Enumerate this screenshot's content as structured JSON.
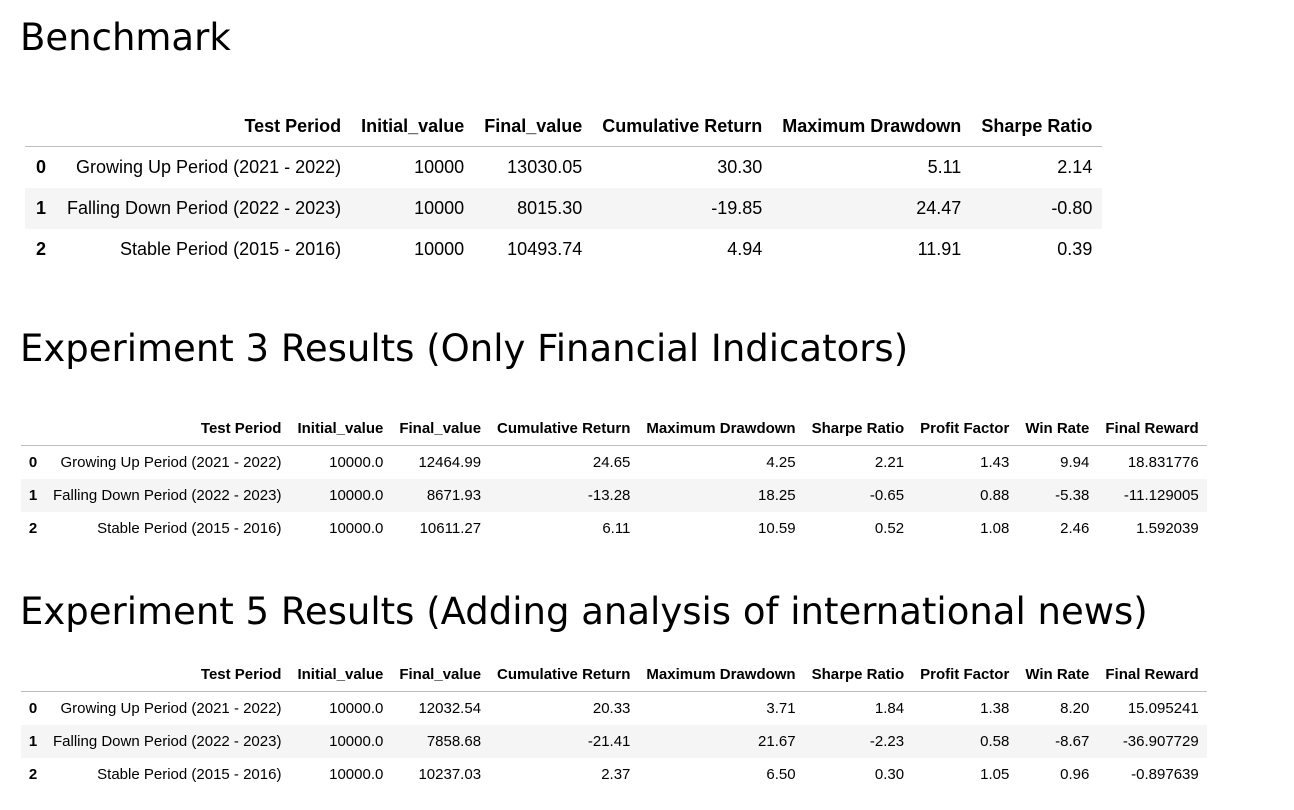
{
  "sections": {
    "benchmark": {
      "title": "Benchmark",
      "columns": [
        "",
        "Test Period",
        "Initial_value",
        "Final_value",
        "Cumulative Return",
        "Maximum Drawdown",
        "Sharpe Ratio"
      ],
      "rows": [
        [
          "0",
          "Growing Up Period (2021 - 2022)",
          "10000",
          "13030.05",
          "30.30",
          "5.11",
          "2.14"
        ],
        [
          "1",
          "Falling Down Period (2022 - 2023)",
          "10000",
          "8015.30",
          "-19.85",
          "24.47",
          "-0.80"
        ],
        [
          "2",
          "Stable Period (2015 - 2016)",
          "10000",
          "10493.74",
          "4.94",
          "11.91",
          "0.39"
        ]
      ]
    },
    "experiment3": {
      "title": "Experiment 3 Results (Only Financial Indicators)",
      "columns": [
        "",
        "Test Period",
        "Initial_value",
        "Final_value",
        "Cumulative Return",
        "Maximum Drawdown",
        "Sharpe Ratio",
        "Profit Factor",
        "Win Rate",
        "Final Reward"
      ],
      "rows": [
        [
          "0",
          "Growing Up Period (2021 - 2022)",
          "10000.0",
          "12464.99",
          "24.65",
          "4.25",
          "2.21",
          "1.43",
          "9.94",
          "18.831776"
        ],
        [
          "1",
          "Falling Down Period (2022 - 2023)",
          "10000.0",
          "8671.93",
          "-13.28",
          "18.25",
          "-0.65",
          "0.88",
          "-5.38",
          "-11.129005"
        ],
        [
          "2",
          "Stable Period (2015 - 2016)",
          "10000.0",
          "10611.27",
          "6.11",
          "10.59",
          "0.52",
          "1.08",
          "2.46",
          "1.592039"
        ]
      ]
    },
    "experiment5": {
      "title": "Experiment 5 Results (Adding analysis of international news)",
      "columns": [
        "",
        "Test Period",
        "Initial_value",
        "Final_value",
        "Cumulative Return",
        "Maximum Drawdown",
        "Sharpe Ratio",
        "Profit Factor",
        "Win Rate",
        "Final Reward"
      ],
      "rows": [
        [
          "0",
          "Growing Up Period (2021 - 2022)",
          "10000.0",
          "12032.54",
          "20.33",
          "3.71",
          "1.84",
          "1.38",
          "8.20",
          "15.095241"
        ],
        [
          "1",
          "Falling Down Period (2022 - 2023)",
          "10000.0",
          "7858.68",
          "-21.41",
          "21.67",
          "-2.23",
          "0.58",
          "-8.67",
          "-36.907729"
        ],
        [
          "2",
          "Stable Period (2015 - 2016)",
          "10000.0",
          "10237.03",
          "2.37",
          "6.50",
          "0.30",
          "1.05",
          "0.96",
          "-0.897639"
        ]
      ]
    }
  }
}
